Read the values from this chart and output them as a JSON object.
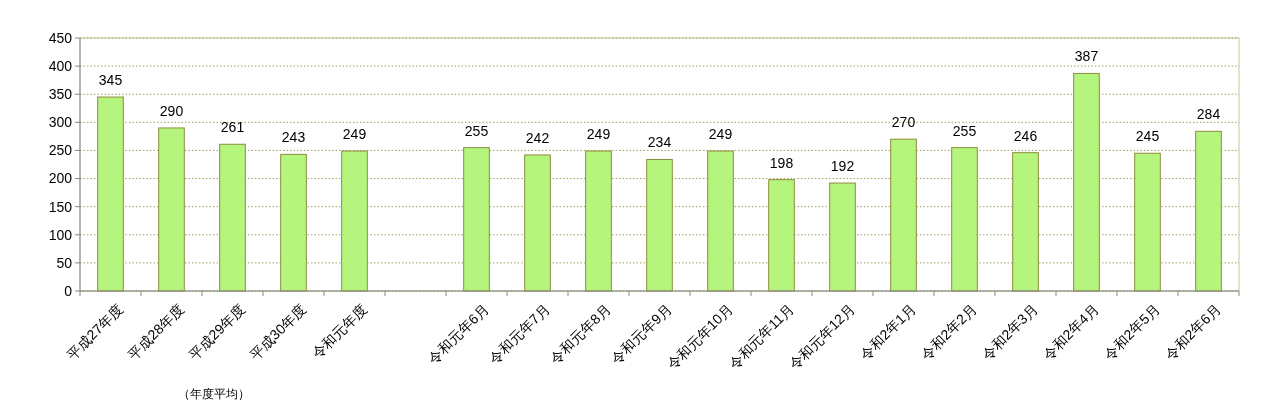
{
  "chart_data": {
    "type": "bar",
    "categories": [
      "平成27年度",
      "平成28年度",
      "平成29年度",
      "平成30年度",
      "令和元年度",
      null,
      "令和元年6月",
      "令和元年7月",
      "令和元年8月",
      "令和元年9月",
      "令和元年10月",
      "令和元年11月",
      "令和元年12月",
      "令和2年1月",
      "令和2年2月",
      "令和2年3月",
      "令和2年4月",
      "令和2年5月",
      "令和2年6月"
    ],
    "values": [
      345,
      290,
      261,
      243,
      249,
      null,
      255,
      242,
      249,
      234,
      249,
      198,
      192,
      270,
      255,
      246,
      387,
      245,
      284
    ],
    "color": "#b5f57e",
    "ylim": [
      0,
      450
    ],
    "yticks": [
      0,
      50,
      100,
      150,
      200,
      250,
      300,
      350,
      400,
      450
    ],
    "grid": "y",
    "data_labels": true,
    "annotations": [
      "（年度平均）"
    ]
  }
}
